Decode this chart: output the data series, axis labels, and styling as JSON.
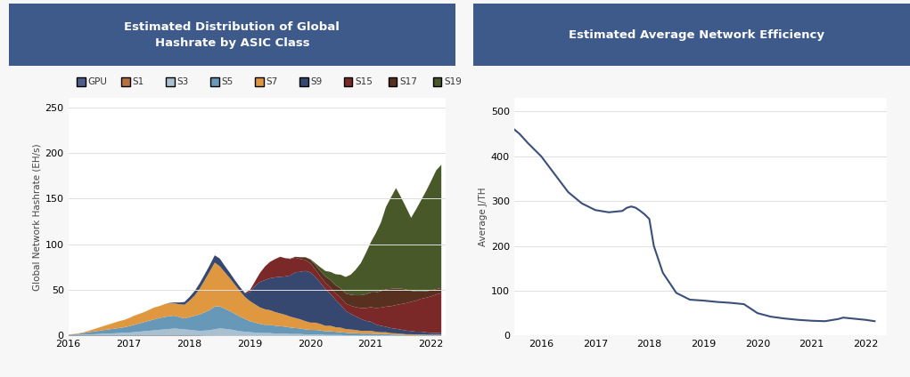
{
  "title1": "Estimated Distribution of Global\nHashrate by ASIC Class",
  "title2": "Estimated Average Network Efficiency",
  "title_bg_color": "#3d5a8a",
  "title_text_color": "#ffffff",
  "ylabel1": "Global Network Hashrate (EH/s)",
  "ylabel2": "Average J/TH",
  "bg_color": "#f7f7f7",
  "plot_bg_color": "#ffffff",
  "grid_color": "#e0e0e0",
  "legend_labels": [
    "GPU",
    "S1",
    "S3",
    "S5",
    "S7",
    "S9",
    "S15",
    "S17",
    "S19"
  ],
  "stack_colors": {
    "GPU": "#4e5d8a",
    "S1": "#b87040",
    "S3": "#a8c0d0",
    "S5": "#6898b8",
    "S7": "#e09840",
    "S9": "#364870",
    "S15": "#7a2828",
    "S17": "#583020",
    "S19": "#485828"
  },
  "x_years": [
    2016.0,
    2016.083,
    2016.167,
    2016.25,
    2016.333,
    2016.417,
    2016.5,
    2016.583,
    2016.667,
    2016.75,
    2016.833,
    2016.917,
    2017.0,
    2017.083,
    2017.167,
    2017.25,
    2017.333,
    2017.417,
    2017.5,
    2017.583,
    2017.667,
    2017.75,
    2017.833,
    2017.917,
    2018.0,
    2018.083,
    2018.167,
    2018.25,
    2018.333,
    2018.417,
    2018.5,
    2018.583,
    2018.667,
    2018.75,
    2018.833,
    2018.917,
    2019.0,
    2019.083,
    2019.167,
    2019.25,
    2019.333,
    2019.417,
    2019.5,
    2019.583,
    2019.667,
    2019.75,
    2019.833,
    2019.917,
    2020.0,
    2020.083,
    2020.167,
    2020.25,
    2020.333,
    2020.417,
    2020.5,
    2020.583,
    2020.667,
    2020.75,
    2020.833,
    2020.917,
    2021.0,
    2021.083,
    2021.167,
    2021.25,
    2021.333,
    2021.417,
    2021.5,
    2021.583,
    2021.667,
    2021.75,
    2021.833,
    2021.917,
    2022.0,
    2022.083,
    2022.167
  ],
  "stack_data": {
    "GPU": [
      0.5,
      0.5,
      0.5,
      0.5,
      0.5,
      0.5,
      0.5,
      0.5,
      0.5,
      0.5,
      0.5,
      0.5,
      0.5,
      0.5,
      0.5,
      0.5,
      0.5,
      0.5,
      0.5,
      0.5,
      0.5,
      0.5,
      0.5,
      0.5,
      0.5,
      0.5,
      0.5,
      0.3,
      0.3,
      0.2,
      0.2,
      0.2,
      0.1,
      0.1,
      0.1,
      0.1,
      0.1,
      0.1,
      0.1,
      0.1,
      0.1,
      0.1,
      0.1,
      0.1,
      0.1,
      0.1,
      0.1,
      0.1,
      0.1,
      0.1,
      0.1,
      0.1,
      0.1,
      0.1,
      0.1,
      0.1,
      0.1,
      0.1,
      0.1,
      0.1,
      0.1,
      0.1,
      0.1,
      0.1,
      0.1,
      0.1,
      0.1,
      0.1,
      0.1,
      0.1,
      0.1,
      0.1,
      0.1,
      0.1,
      0.1
    ],
    "S1": [
      0.2,
      0.2,
      0.2,
      0.2,
      0.2,
      0.2,
      0.2,
      0.2,
      0.2,
      0.2,
      0.2,
      0.2,
      0.2,
      0.2,
      0.2,
      0.2,
      0.2,
      0.2,
      0.2,
      0.2,
      0.2,
      0.2,
      0.2,
      0.2,
      0.2,
      0.1,
      0.1,
      0.1,
      0.1,
      0.1,
      0.1,
      0.1,
      0.1,
      0.1,
      0.1,
      0.1,
      0.1,
      0.1,
      0.1,
      0.1,
      0.1,
      0.1,
      0.1,
      0.1,
      0.1,
      0.1,
      0.1,
      0.1,
      0.0,
      0.0,
      0.0,
      0.0,
      0.0,
      0.0,
      0.0,
      0.0,
      0.0,
      0.0,
      0.0,
      0.0,
      0.0,
      0.0,
      0.0,
      0.0,
      0.0,
      0.0,
      0.0,
      0.0,
      0.0,
      0.0,
      0.0,
      0.0,
      0.0,
      0.0,
      0.0
    ],
    "S3": [
      0.3,
      0.3,
      0.5,
      0.8,
      1.0,
      1.2,
      1.5,
      1.8,
      2.0,
      2.2,
      2.5,
      2.8,
      3.0,
      3.5,
      4.0,
      4.5,
      5.0,
      5.5,
      6.0,
      6.5,
      7.0,
      7.5,
      7.0,
      6.5,
      6.0,
      5.5,
      5.0,
      5.5,
      6.0,
      7.0,
      8.0,
      7.5,
      7.0,
      6.0,
      5.0,
      4.5,
      4.0,
      3.5,
      3.0,
      3.0,
      3.0,
      2.5,
      2.5,
      2.5,
      2.0,
      2.0,
      2.0,
      1.5,
      1.5,
      1.5,
      1.5,
      1.0,
      1.0,
      1.0,
      1.0,
      0.5,
      0.5,
      0.5,
      0.5,
      0.5,
      0.5,
      0.5,
      0.5,
      0.5,
      0.5,
      0.3,
      0.3,
      0.3,
      0.3,
      0.3,
      0.3,
      0.3,
      0.3,
      0.3,
      0.3
    ],
    "S5": [
      0.5,
      0.8,
      1.2,
      1.8,
      2.5,
      3.0,
      3.5,
      4.0,
      4.5,
      5.0,
      5.5,
      6.0,
      7.0,
      8.0,
      9.0,
      10.0,
      11.0,
      12.0,
      13.0,
      13.5,
      14.0,
      14.0,
      13.0,
      12.0,
      14.0,
      16.0,
      18.0,
      20.0,
      22.0,
      25.0,
      24.0,
      22.0,
      20.0,
      18.0,
      16.0,
      14.0,
      12.0,
      11.0,
      10.0,
      9.0,
      9.0,
      8.5,
      8.0,
      7.5,
      7.0,
      6.5,
      6.0,
      5.5,
      5.0,
      5.0,
      4.5,
      4.0,
      4.0,
      3.5,
      3.0,
      3.0,
      2.5,
      2.5,
      2.0,
      2.0,
      2.0,
      1.5,
      1.5,
      1.5,
      1.0,
      1.0,
      1.0,
      0.5,
      0.5,
      0.5,
      0.5,
      0.5,
      0.5,
      0.5,
      0.5
    ],
    "S7": [
      0.2,
      0.3,
      0.5,
      0.8,
      1.5,
      2.5,
      3.5,
      4.5,
      5.5,
      6.5,
      7.5,
      8.0,
      9.0,
      10.0,
      10.5,
      11.0,
      12.0,
      13.0,
      13.0,
      14.0,
      14.0,
      13.5,
      14.0,
      15.0,
      18.0,
      22.0,
      28.0,
      35.0,
      42.0,
      48.0,
      44.0,
      40.0,
      36.0,
      32.0,
      28.0,
      24.0,
      22.0,
      20.0,
      18.0,
      17.0,
      16.0,
      15.0,
      14.0,
      13.0,
      12.0,
      11.0,
      10.0,
      9.0,
      8.0,
      8.0,
      7.0,
      6.0,
      6.0,
      5.0,
      5.0,
      4.0,
      4.0,
      3.5,
      3.0,
      3.0,
      3.0,
      2.5,
      2.0,
      2.0,
      1.5,
      1.5,
      1.0,
      1.0,
      1.0,
      0.8,
      0.8,
      0.5,
      0.5,
      0.5,
      0.5
    ],
    "S9": [
      0.0,
      0.0,
      0.0,
      0.0,
      0.0,
      0.0,
      0.0,
      0.0,
      0.0,
      0.0,
      0.0,
      0.0,
      0.0,
      0.0,
      0.0,
      0.0,
      0.0,
      0.0,
      0.0,
      0.0,
      0.5,
      1.0,
      2.0,
      3.0,
      4.0,
      5.0,
      6.0,
      6.5,
      7.0,
      8.0,
      8.5,
      7.0,
      6.0,
      5.0,
      4.5,
      4.0,
      10.0,
      20.0,
      28.0,
      32.0,
      35.0,
      38.0,
      40.0,
      42.0,
      45.0,
      50.0,
      52.0,
      55.0,
      55.0,
      50.0,
      45.0,
      40.0,
      35.0,
      30.0,
      25.0,
      20.0,
      17.0,
      15.0,
      13.0,
      11.0,
      10.0,
      8.0,
      7.0,
      6.0,
      5.5,
      5.0,
      4.5,
      4.0,
      3.5,
      3.0,
      3.0,
      2.5,
      2.0,
      2.0,
      1.5
    ],
    "S15": [
      0.0,
      0.0,
      0.0,
      0.0,
      0.0,
      0.0,
      0.0,
      0.0,
      0.0,
      0.0,
      0.0,
      0.0,
      0.0,
      0.0,
      0.0,
      0.0,
      0.0,
      0.0,
      0.0,
      0.0,
      0.0,
      0.0,
      0.0,
      0.0,
      0.0,
      0.0,
      0.0,
      0.0,
      0.0,
      0.0,
      0.0,
      0.0,
      0.0,
      0.0,
      0.0,
      0.5,
      2.0,
      5.0,
      10.0,
      15.0,
      18.0,
      20.0,
      22.0,
      20.0,
      18.0,
      16.0,
      14.0,
      12.0,
      10.0,
      8.0,
      7.0,
      7.0,
      7.0,
      7.0,
      8.0,
      8.0,
      9.0,
      10.0,
      12.0,
      14.0,
      16.0,
      18.0,
      20.0,
      22.0,
      24.0,
      26.0,
      28.0,
      30.0,
      32.0,
      34.0,
      36.0,
      38.0,
      40.0,
      42.0,
      44.0
    ],
    "S17": [
      0.0,
      0.0,
      0.0,
      0.0,
      0.0,
      0.0,
      0.0,
      0.0,
      0.0,
      0.0,
      0.0,
      0.0,
      0.0,
      0.0,
      0.0,
      0.0,
      0.0,
      0.0,
      0.0,
      0.0,
      0.0,
      0.0,
      0.0,
      0.0,
      0.0,
      0.0,
      0.0,
      0.0,
      0.0,
      0.0,
      0.0,
      0.0,
      0.0,
      0.0,
      0.0,
      0.0,
      0.0,
      0.0,
      0.0,
      0.0,
      0.0,
      0.0,
      0.0,
      0.0,
      0.5,
      1.0,
      2.0,
      3.0,
      4.0,
      5.0,
      6.0,
      7.0,
      8.0,
      9.0,
      10.0,
      11.0,
      12.0,
      13.0,
      14.0,
      15.0,
      16.0,
      17.0,
      18.0,
      19.0,
      19.0,
      18.0,
      17.0,
      15.0,
      12.0,
      10.0,
      8.0,
      7.0,
      6.5,
      6.0,
      5.5
    ],
    "S19": [
      0.0,
      0.0,
      0.0,
      0.0,
      0.0,
      0.0,
      0.0,
      0.0,
      0.0,
      0.0,
      0.0,
      0.0,
      0.0,
      0.0,
      0.0,
      0.0,
      0.0,
      0.0,
      0.0,
      0.0,
      0.0,
      0.0,
      0.0,
      0.0,
      0.0,
      0.0,
      0.0,
      0.0,
      0.0,
      0.0,
      0.0,
      0.0,
      0.0,
      0.0,
      0.0,
      0.0,
      0.0,
      0.0,
      0.0,
      0.0,
      0.0,
      0.0,
      0.0,
      0.0,
      0.0,
      0.0,
      0.0,
      0.0,
      0.5,
      2.0,
      4.0,
      6.0,
      9.0,
      12.0,
      15.0,
      18.0,
      22.0,
      28.0,
      35.0,
      45.0,
      55.0,
      65.0,
      75.0,
      90.0,
      100.0,
      110.0,
      100.0,
      90.0,
      80.0,
      90.0,
      100.0,
      110.0,
      120.0,
      130.0,
      135.0
    ]
  },
  "efficiency_x": [
    2015.5,
    2015.6,
    2015.75,
    2016.0,
    2016.25,
    2016.5,
    2016.75,
    2017.0,
    2017.25,
    2017.5,
    2017.583,
    2017.667,
    2017.75,
    2017.833,
    2017.917,
    2018.0,
    2018.083,
    2018.25,
    2018.5,
    2018.75,
    2019.0,
    2019.083,
    2019.167,
    2019.25,
    2019.5,
    2019.75,
    2020.0,
    2020.25,
    2020.5,
    2020.75,
    2021.0,
    2021.25,
    2021.5,
    2021.583,
    2021.75,
    2022.0,
    2022.167
  ],
  "efficiency_y": [
    460,
    450,
    430,
    400,
    360,
    320,
    295,
    280,
    275,
    278,
    285,
    288,
    285,
    278,
    270,
    260,
    200,
    140,
    95,
    80,
    78,
    77,
    76,
    75,
    73,
    70,
    50,
    42,
    38,
    35,
    33,
    32,
    37,
    40,
    38,
    35,
    32
  ],
  "efficiency_color": "#3a4f7a",
  "ylim1": [
    0,
    260
  ],
  "ylim2": [
    0,
    530
  ],
  "yticks1": [
    0,
    50,
    100,
    150,
    200,
    250
  ],
  "yticks2": [
    0,
    100,
    200,
    300,
    400,
    500
  ],
  "xticks": [
    2016,
    2017,
    2018,
    2019,
    2020,
    2021,
    2022
  ],
  "xtick_labels": [
    "2016",
    "2017",
    "2018",
    "2019",
    "2020",
    "2021",
    "2022"
  ]
}
